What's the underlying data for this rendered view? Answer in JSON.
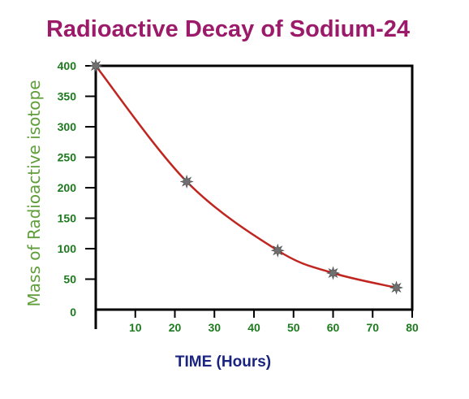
{
  "chart_data": {
    "type": "line",
    "title": "Radioactive Decay of Sodium-24",
    "xlabel": "TIME (Hours)",
    "ylabel": "Mass of Radioactive isotope",
    "xlim": [
      0,
      80
    ],
    "ylim": [
      0,
      400
    ],
    "x_ticks": [
      "10",
      "20",
      "30",
      "40",
      "50",
      "60",
      "70",
      "80"
    ],
    "y_ticks": [
      "400",
      "350",
      "300",
      "250",
      "200",
      "150",
      "100",
      "50",
      "0"
    ],
    "grid": false,
    "legend": "none",
    "points": [
      {
        "x": 0,
        "y": 400
      },
      {
        "x": 23,
        "y": 210
      },
      {
        "x": 46,
        "y": 97
      },
      {
        "x": 60,
        "y": 60
      },
      {
        "x": 76,
        "y": 36
      }
    ]
  },
  "colors": {
    "title": "#9b1b6a",
    "tick": "#1e7a1e",
    "ylabel": "#5f9e3a",
    "xlabel": "#1a237e",
    "curve": "#c0261f",
    "marker": "#707070",
    "axis": "#000000"
  }
}
